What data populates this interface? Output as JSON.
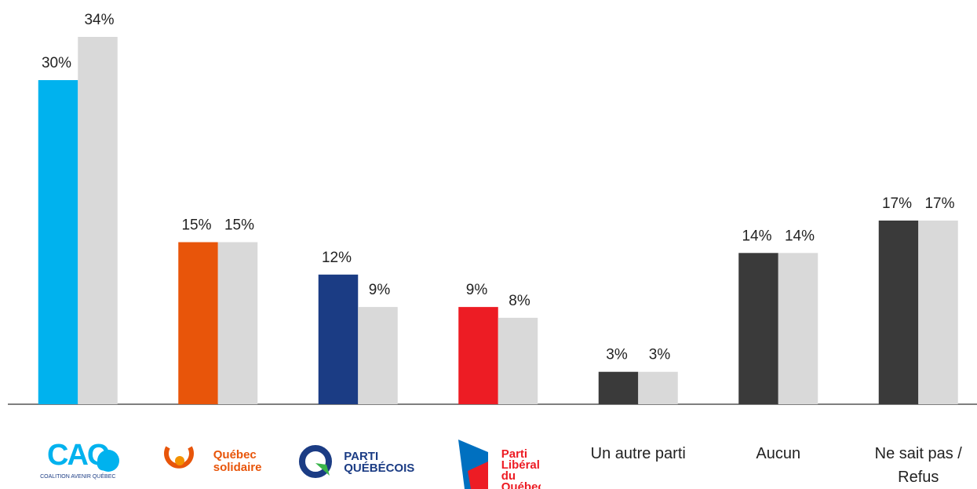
{
  "chart_data": {
    "type": "bar",
    "categories": [
      "CAQ",
      "Québec solidaire",
      "PARTI QUÉBÉCOIS",
      "Parti Libéral du Québec",
      "Un autre parti",
      "Aucun",
      "Ne sait pas / Refus"
    ],
    "caq_tagline": "COALITION AVENIR QUÉBEC",
    "series": [
      {
        "colors": [
          "#00b2ee",
          "#e8550a",
          "#1b3c84",
          "#ed1c24",
          "#3a3a3a",
          "#3a3a3a",
          "#3a3a3a"
        ],
        "values": [
          30,
          15,
          12,
          9,
          3,
          14,
          17
        ],
        "value_labels": [
          "30%",
          "15%",
          "12%",
          "9%",
          "3%",
          "14%",
          "17%"
        ]
      },
      {
        "color": "#d9d9d9",
        "values": [
          34,
          15,
          9,
          8,
          3,
          14,
          17
        ],
        "value_labels": [
          "34%",
          "15%",
          "9%",
          "8%",
          "3%",
          "14%",
          "17%"
        ]
      }
    ],
    "ylim": [
      0,
      34
    ]
  }
}
